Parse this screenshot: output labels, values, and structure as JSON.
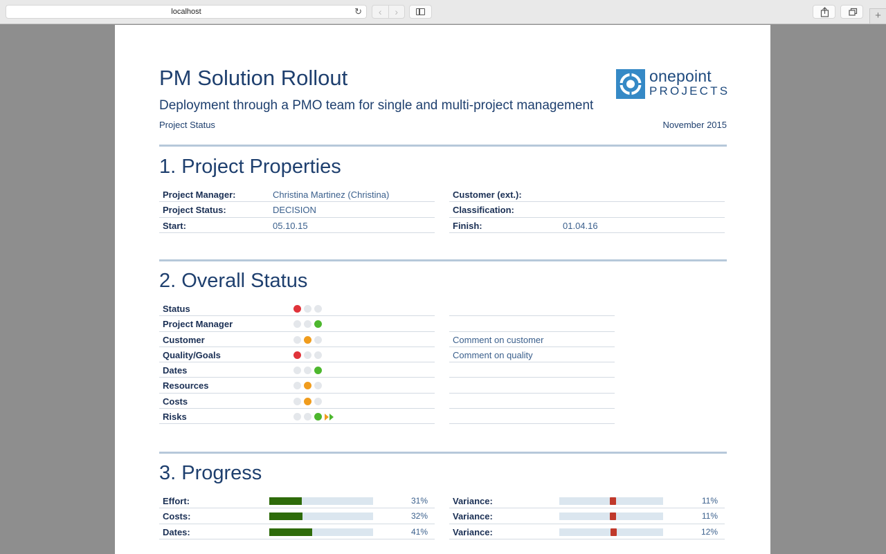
{
  "browser": {
    "url": "localhost",
    "reload_icon": "↻",
    "back_icon": "‹",
    "forward_icon": "›",
    "new_tab_icon": "+"
  },
  "header": {
    "title": "PM Solution Rollout",
    "subtitle": "Deployment through a PMO team for single and multi-project management",
    "report_type": "Project Status",
    "date": "November 2015",
    "logo_word": "onepoint",
    "logo_sub": "PROJECTS"
  },
  "properties": {
    "heading": "1. Project Properties",
    "left": [
      {
        "label": "Project Manager:",
        "value": "Christina Martinez (Christina)"
      },
      {
        "label": "Project Status:",
        "value": "DECISION"
      },
      {
        "label": "Start:",
        "value": "05.10.15"
      }
    ],
    "right": [
      {
        "label": "Customer (ext.):",
        "value": ""
      },
      {
        "label": "Classification:",
        "value": ""
      },
      {
        "label": "Finish:",
        "value": "01.04.16"
      }
    ]
  },
  "overall": {
    "heading": "2. Overall Status",
    "colors": {
      "red": "#e0333a",
      "amber": "#f09c1d",
      "green": "#4db72e",
      "off": "#e4e7eb"
    },
    "rows": [
      {
        "label": "Status",
        "light": "red",
        "comment": ""
      },
      {
        "label": "Project Manager",
        "light": "green",
        "comment": ""
      },
      {
        "label": "Customer",
        "light": "amber",
        "comment": "Comment on customer"
      },
      {
        "label": "Quality/Goals",
        "light": "red",
        "comment": "Comment on quality"
      },
      {
        "label": "Dates",
        "light": "green",
        "comment": ""
      },
      {
        "label": "Resources",
        "light": "amber",
        "comment": ""
      },
      {
        "label": "Costs",
        "light": "amber",
        "comment": ""
      },
      {
        "label": "Risks",
        "light": "green",
        "trend": "improving",
        "comment": ""
      }
    ]
  },
  "progress": {
    "heading": "3. Progress",
    "rows": [
      {
        "label": "Effort:",
        "percent": 31,
        "pct_text": "31%",
        "variance_label": "Variance:",
        "variance": 11,
        "variance_text": "11%"
      },
      {
        "label": "Costs:",
        "percent": 32,
        "pct_text": "32%",
        "variance_label": "Variance:",
        "variance": 11,
        "variance_text": "11%"
      },
      {
        "label": "Dates:",
        "percent": 41,
        "pct_text": "41%",
        "variance_label": "Variance:",
        "variance": 12,
        "variance_text": "12%"
      }
    ]
  }
}
